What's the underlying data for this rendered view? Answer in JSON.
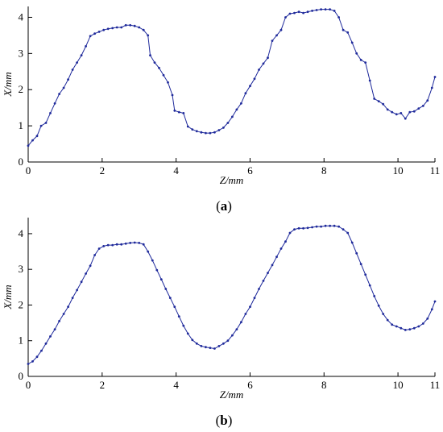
{
  "figure": {
    "panels": [
      {
        "caption_open": "(",
        "caption_letter": "a",
        "caption_close": ")"
      },
      {
        "caption_open": "(",
        "caption_letter": "b",
        "caption_close": ")"
      }
    ]
  },
  "chart_data": [
    {
      "type": "line",
      "xlabel": "Z/mm",
      "ylabel": "X/mm",
      "xlim": [
        0,
        11
      ],
      "ylim": [
        0,
        4.3
      ],
      "xticks": [
        0,
        2,
        4,
        6,
        8,
        10,
        11
      ],
      "yticks": [
        0,
        1,
        2,
        3,
        4
      ],
      "grid": false,
      "color": "#1f2a9b",
      "series": [
        {
          "x": [
            0.0,
            0.12,
            0.24,
            0.35,
            0.48,
            0.6,
            0.72,
            0.84,
            0.96,
            1.08,
            1.2,
            1.32,
            1.44,
            1.56,
            1.68,
            1.8,
            1.92,
            2.04,
            2.16,
            2.28,
            2.4,
            2.52,
            2.64,
            2.76,
            2.88,
            3.0,
            3.12,
            3.24,
            3.3,
            3.42,
            3.54,
            3.66,
            3.78,
            3.9,
            3.96,
            4.08,
            4.2,
            4.32,
            4.44,
            4.56,
            4.68,
            4.8,
            4.92,
            5.04,
            5.16,
            5.28,
            5.4,
            5.52,
            5.64,
            5.76,
            5.88,
            6.0,
            6.12,
            6.24,
            6.36,
            6.48,
            6.6,
            6.72,
            6.84,
            6.96,
            7.08,
            7.2,
            7.32,
            7.44,
            7.56,
            7.68,
            7.8,
            7.92,
            8.04,
            8.16,
            8.28,
            8.4,
            8.52,
            8.64,
            8.76,
            8.88,
            9.0,
            9.12,
            9.24,
            9.36,
            9.48,
            9.6,
            9.72,
            9.84,
            9.96,
            10.08,
            10.2,
            10.32,
            10.44,
            10.56,
            10.68,
            10.8,
            10.92,
            11.0
          ],
          "y": [
            0.45,
            0.6,
            0.72,
            1.0,
            1.08,
            1.35,
            1.62,
            1.88,
            2.05,
            2.28,
            2.55,
            2.75,
            2.95,
            3.2,
            3.48,
            3.55,
            3.6,
            3.65,
            3.68,
            3.7,
            3.72,
            3.72,
            3.78,
            3.78,
            3.76,
            3.72,
            3.65,
            3.5,
            2.95,
            2.75,
            2.6,
            2.4,
            2.2,
            1.85,
            1.42,
            1.38,
            1.35,
            0.98,
            0.9,
            0.85,
            0.82,
            0.8,
            0.8,
            0.82,
            0.88,
            0.95,
            1.08,
            1.25,
            1.45,
            1.62,
            1.9,
            2.1,
            2.3,
            2.55,
            2.72,
            2.88,
            3.35,
            3.5,
            3.65,
            4.0,
            4.1,
            4.12,
            4.15,
            4.12,
            4.15,
            4.18,
            4.2,
            4.22,
            4.22,
            4.22,
            4.18,
            4.0,
            3.65,
            3.58,
            3.3,
            3.0,
            2.82,
            2.75,
            2.25,
            1.75,
            1.68,
            1.6,
            1.45,
            1.38,
            1.32,
            1.35,
            1.2,
            1.38,
            1.4,
            1.48,
            1.55,
            1.7,
            2.05,
            2.35
          ]
        }
      ]
    },
    {
      "type": "line",
      "xlabel": "Z/mm",
      "ylabel": "X/mm",
      "xlim": [
        0,
        11
      ],
      "ylim": [
        0,
        4.45
      ],
      "xticks": [
        0,
        2,
        4,
        6,
        8,
        10,
        11
      ],
      "yticks": [
        0,
        1,
        2,
        3,
        4
      ],
      "grid": false,
      "color": "#1f2a9b",
      "series": [
        {
          "x": [
            0.0,
            0.12,
            0.24,
            0.36,
            0.48,
            0.6,
            0.72,
            0.84,
            0.96,
            1.08,
            1.2,
            1.32,
            1.44,
            1.56,
            1.68,
            1.8,
            1.92,
            2.04,
            2.16,
            2.28,
            2.4,
            2.52,
            2.64,
            2.76,
            2.88,
            3.0,
            3.12,
            3.24,
            3.36,
            3.48,
            3.6,
            3.72,
            3.84,
            3.96,
            4.08,
            4.2,
            4.32,
            4.44,
            4.56,
            4.68,
            4.8,
            4.92,
            5.04,
            5.16,
            5.28,
            5.4,
            5.52,
            5.64,
            5.76,
            5.88,
            6.0,
            6.12,
            6.24,
            6.36,
            6.48,
            6.6,
            6.72,
            6.84,
            6.96,
            7.08,
            7.2,
            7.32,
            7.44,
            7.56,
            7.68,
            7.8,
            7.92,
            8.04,
            8.16,
            8.28,
            8.4,
            8.52,
            8.64,
            8.76,
            8.88,
            9.0,
            9.12,
            9.24,
            9.36,
            9.48,
            9.6,
            9.72,
            9.84,
            9.96,
            10.08,
            10.2,
            10.32,
            10.44,
            10.56,
            10.68,
            10.8,
            10.92,
            11.0
          ],
          "y": [
            0.35,
            0.42,
            0.55,
            0.72,
            0.92,
            1.12,
            1.32,
            1.55,
            1.75,
            1.95,
            2.2,
            2.42,
            2.65,
            2.88,
            3.1,
            3.4,
            3.58,
            3.65,
            3.68,
            3.68,
            3.7,
            3.7,
            3.72,
            3.74,
            3.75,
            3.74,
            3.7,
            3.5,
            3.25,
            2.98,
            2.72,
            2.45,
            2.2,
            1.95,
            1.68,
            1.42,
            1.2,
            1.02,
            0.92,
            0.85,
            0.82,
            0.8,
            0.78,
            0.85,
            0.92,
            1.0,
            1.15,
            1.32,
            1.52,
            1.75,
            1.95,
            2.2,
            2.45,
            2.68,
            2.9,
            3.12,
            3.35,
            3.58,
            3.78,
            4.02,
            4.12,
            4.15,
            4.15,
            4.16,
            4.18,
            4.2,
            4.2,
            4.22,
            4.22,
            4.22,
            4.2,
            4.12,
            4.02,
            3.75,
            3.45,
            3.15,
            2.85,
            2.55,
            2.25,
            1.98,
            1.75,
            1.58,
            1.45,
            1.4,
            1.35,
            1.3,
            1.32,
            1.35,
            1.4,
            1.48,
            1.62,
            1.88,
            2.1
          ]
        }
      ]
    }
  ]
}
